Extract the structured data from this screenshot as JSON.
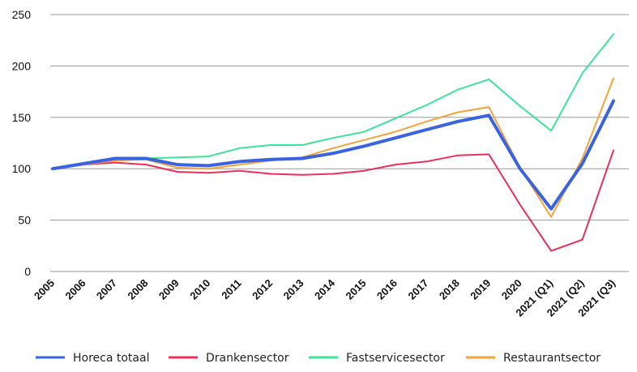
{
  "chart_data": {
    "type": "line",
    "title": "",
    "xlabel": "",
    "ylabel": "",
    "categories": [
      "2005",
      "2006",
      "2007",
      "2008",
      "2009",
      "2010",
      "2011",
      "2012",
      "2013",
      "2014",
      "2015",
      "2016",
      "2017",
      "2018",
      "2019",
      "2020",
      "2021 (Q1)",
      "2021 (Q2)",
      "2021 (Q3)"
    ],
    "ylim": [
      0,
      250
    ],
    "yticks": [
      "0",
      "50",
      "100",
      "150",
      "200",
      "250"
    ],
    "grid": true,
    "legend_position": "bottom",
    "series": [
      {
        "name": "Horeca totaal",
        "color": "#3a63e0",
        "width": 4,
        "values": [
          100,
          105,
          110,
          110,
          104,
          103,
          107,
          109,
          110,
          115,
          122,
          130,
          138,
          146,
          152,
          100,
          61,
          105,
          166
        ]
      },
      {
        "name": "Drankensector",
        "color": "#e8305a",
        "width": 2,
        "values": [
          100,
          104,
          106,
          104,
          97,
          96,
          98,
          95,
          94,
          95,
          98,
          104,
          107,
          113,
          114,
          65,
          20,
          31,
          118
        ]
      },
      {
        "name": "Fastservicesector",
        "color": "#3ee39a",
        "width": 2,
        "values": [
          100,
          105,
          109,
          110,
          111,
          112,
          120,
          123,
          123,
          130,
          136,
          149,
          162,
          177,
          187,
          161,
          137,
          193,
          231
        ]
      },
      {
        "name": "Restaurantsector",
        "color": "#f5a33b",
        "width": 2,
        "values": [
          100,
          104,
          108,
          109,
          101,
          100,
          104,
          108,
          111,
          120,
          128,
          136,
          146,
          155,
          160,
          101,
          53,
          110,
          188
        ]
      }
    ]
  }
}
